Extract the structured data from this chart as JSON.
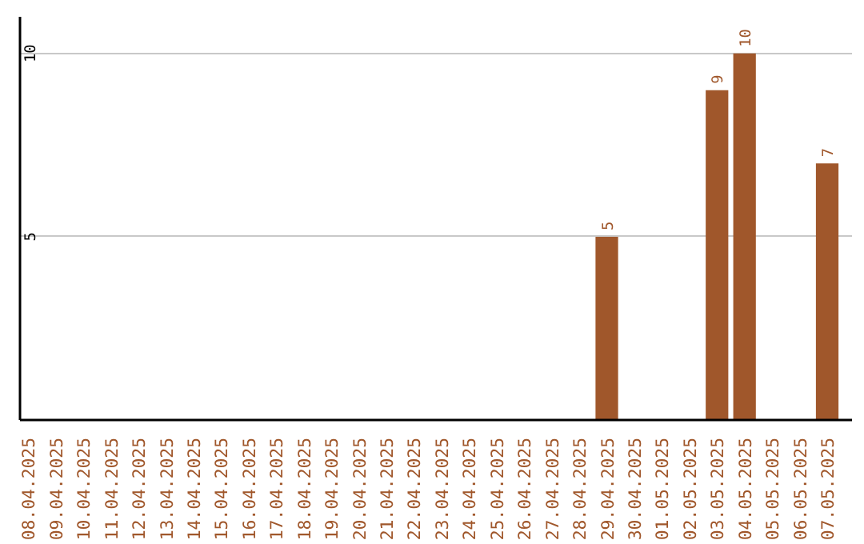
{
  "chart_data": {
    "type": "bar",
    "categories": [
      "08.04.2025",
      "09.04.2025",
      "10.04.2025",
      "11.04.2025",
      "12.04.2025",
      "13.04.2025",
      "14.04.2025",
      "15.04.2025",
      "16.04.2025",
      "17.04.2025",
      "18.04.2025",
      "19.04.2025",
      "20.04.2025",
      "21.04.2025",
      "22.04.2025",
      "23.04.2025",
      "24.04.2025",
      "25.04.2025",
      "26.04.2025",
      "27.04.2025",
      "28.04.2025",
      "29.04.2025",
      "30.04.2025",
      "01.05.2025",
      "02.05.2025",
      "03.05.2025",
      "04.05.2025",
      "05.05.2025",
      "06.05.2025",
      "07.05.2025"
    ],
    "values": [
      0,
      0,
      0,
      0,
      0,
      0,
      0,
      0,
      0,
      0,
      0,
      0,
      0,
      0,
      0,
      0,
      0,
      0,
      0,
      0,
      0,
      5,
      0,
      0,
      0,
      9,
      10,
      0,
      0,
      7
    ],
    "value_labels": [
      null,
      null,
      null,
      null,
      null,
      null,
      null,
      null,
      null,
      null,
      null,
      null,
      null,
      null,
      null,
      null,
      null,
      null,
      null,
      null,
      null,
      "5",
      null,
      null,
      null,
      "9",
      "10",
      null,
      null,
      "7"
    ],
    "color": "#a0572b",
    "ylim": [
      0,
      11
    ],
    "yticks": [
      5,
      10
    ],
    "grid": "y"
  }
}
